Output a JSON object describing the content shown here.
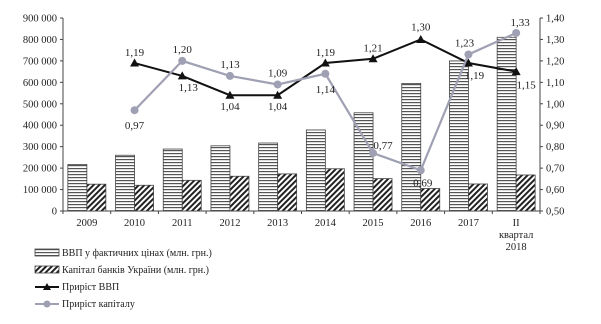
{
  "chart_data": {
    "type": "bar",
    "categories": [
      "2009",
      "2010",
      "2011",
      "2012",
      "2013",
      "2014",
      "2015",
      "2016",
      "2017",
      [
        "II",
        "квартал",
        "2018"
      ]
    ],
    "series": [
      {
        "name": "ВВП у фактичних цінах (млн. грн.)",
        "type": "bar",
        "axis": "left",
        "pattern": "horizontal-stripes",
        "values": [
          217000,
          260000,
          289000,
          304000,
          317000,
          378000,
          458000,
          595000,
          700000,
          810000
        ]
      },
      {
        "name": "Капітал банків України (млн. грн.)",
        "type": "bar",
        "axis": "left",
        "pattern": "diagonal-hatch",
        "values": [
          125000,
          120000,
          143000,
          162000,
          173000,
          197000,
          151000,
          105000,
          126000,
          168000
        ]
      },
      {
        "name": "Приріст ВВП",
        "type": "line",
        "axis": "right",
        "marker": "triangle",
        "color": "#111111",
        "values": [
          null,
          1.19,
          1.13,
          1.04,
          1.04,
          1.19,
          1.21,
          1.3,
          1.19,
          1.15
        ],
        "labels": [
          null,
          "1,19",
          "1,13",
          "1,04",
          "1,04",
          "1,19",
          "1,21",
          "1,30",
          "1,19",
          "1,15"
        ]
      },
      {
        "name": "Приріст капіталу",
        "type": "line",
        "axis": "right",
        "marker": "circle",
        "color": "#a0a0b4",
        "values": [
          null,
          0.97,
          1.2,
          1.13,
          1.09,
          1.14,
          0.77,
          0.69,
          1.23,
          1.33
        ],
        "labels": [
          null,
          "0,97",
          "1,20",
          "1,13",
          "1,09",
          "1,14",
          "0,77",
          "0,69",
          "1,23",
          "1,33"
        ]
      }
    ],
    "y_left": {
      "min": 0,
      "max": 900000,
      "step": 100000,
      "ticks": [
        "0",
        "100 000",
        "200 000",
        "300 000",
        "400 000",
        "500 000",
        "600 000",
        "700 000",
        "800 000",
        "900 000"
      ]
    },
    "y_right": {
      "min": 0.5,
      "max": 1.4,
      "step": 0.1,
      "ticks": [
        "0,50",
        "0,60",
        "0,70",
        "0,80",
        "0,90",
        "1,00",
        "1,10",
        "1,20",
        "1,30",
        "1,40"
      ]
    },
    "grid": false,
    "legend_position": "bottom-left"
  }
}
